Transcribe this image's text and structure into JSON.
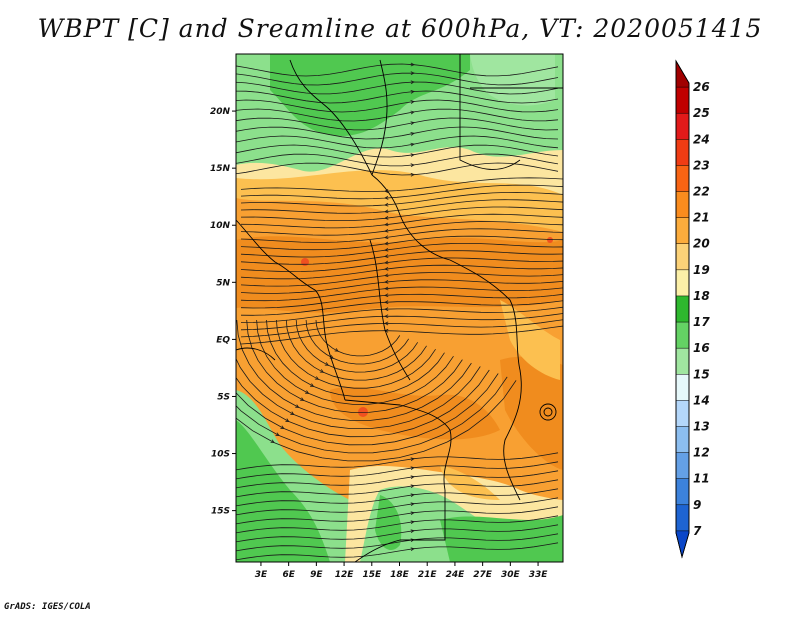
{
  "title": "WBPT [C] and Sreamline at 600hPa, VT: 2020051415",
  "credit": "GrADS: IGES/COLA",
  "map": {
    "lat_labels": [
      "20N",
      "15N",
      "10N",
      "5N",
      "EQ",
      "5S",
      "10S",
      "15S"
    ],
    "lat_values": [
      20,
      15,
      10,
      5,
      0,
      -5,
      -10,
      -15
    ],
    "lon_labels": [
      "3E",
      "6E",
      "9E",
      "12E",
      "15E",
      "18E",
      "21E",
      "24E",
      "27E",
      "30E",
      "33E"
    ],
    "lon_values": [
      3,
      6,
      9,
      12,
      15,
      18,
      21,
      24,
      27,
      30,
      33
    ],
    "lat_range": [
      -19.5,
      25
    ],
    "lon_range": [
      0.3,
      35.7
    ]
  },
  "colorbar": {
    "levels": [
      "26",
      "25",
      "24",
      "23",
      "22",
      "21",
      "20",
      "19",
      "18",
      "17",
      "16",
      "15",
      "14",
      "13",
      "12",
      "11",
      "9",
      "7"
    ],
    "colors": [
      "#a00000",
      "#c00000",
      "#e21a1a",
      "#f03c14",
      "#f86414",
      "#fa8c1e",
      "#fcac3c",
      "#fcd278",
      "#fcf0a8",
      "#2eb82e",
      "#64d264",
      "#a0e6a0",
      "#e6f8fa",
      "#b4d7fa",
      "#8cbef0",
      "#64a0e6",
      "#3c82dc",
      "#1e64d2",
      "#0a46c8"
    ]
  },
  "palette": {
    "dark_orange": "#f08c1e",
    "orange": "#f8a032",
    "light_orange": "#fcc050",
    "pale_yellow": "#fce6a0",
    "light_green": "#8ce08c",
    "green": "#50c850",
    "red_spot": "#f05020"
  }
}
